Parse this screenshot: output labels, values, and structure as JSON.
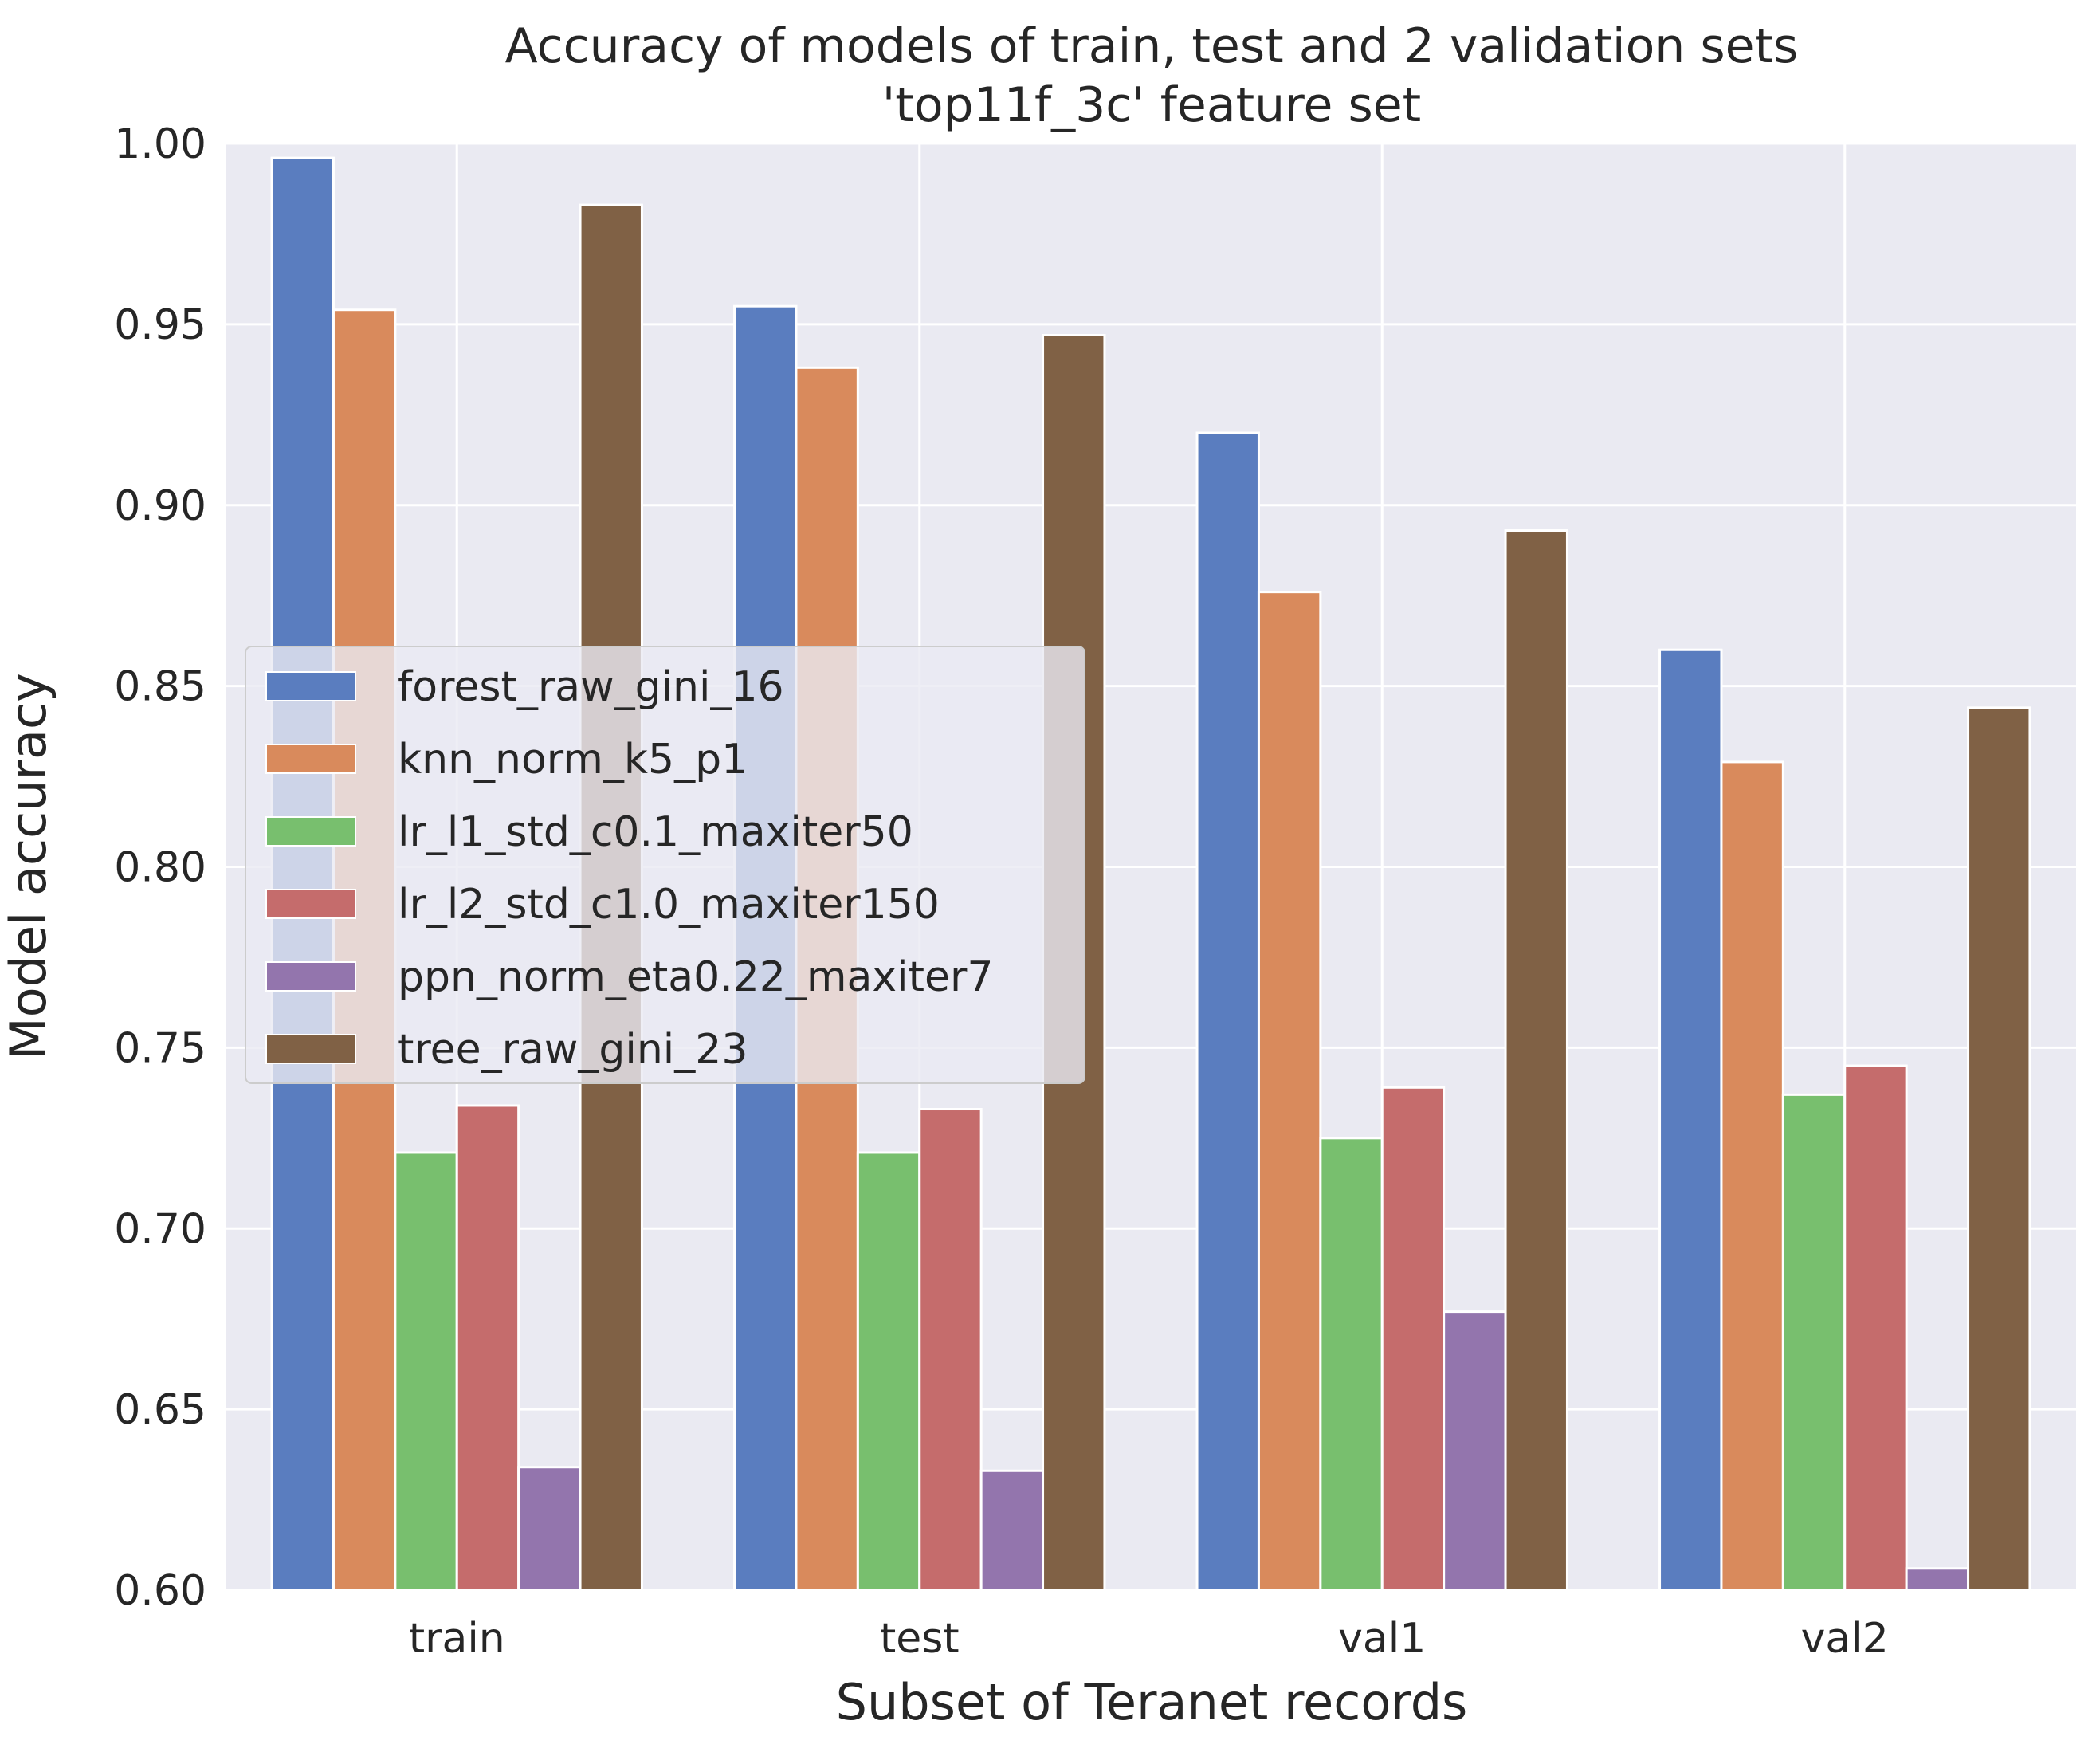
{
  "chart_data": {
    "type": "bar",
    "title": "Accuracy of models of train, test and 2 validation sets",
    "subtitle": "'top11f_3c' feature set",
    "xlabel": "Subset of Teranet records",
    "ylabel": "Model accuracy",
    "ylim": [
      0.6,
      1.0
    ],
    "yticks": [
      "0.60",
      "0.65",
      "0.70",
      "0.75",
      "0.80",
      "0.85",
      "0.90",
      "0.95",
      "1.00"
    ],
    "categories": [
      "train",
      "test",
      "val1",
      "val2"
    ],
    "grid": true,
    "legend_position": "center-left",
    "series": [
      {
        "name": "forest_raw_gini_16",
        "color": "#5a7dbf",
        "values": [
          0.996,
          0.955,
          0.92,
          0.86
        ]
      },
      {
        "name": "knn_norm_k5_p1",
        "color": "#d98a5c",
        "values": [
          0.954,
          0.938,
          0.876,
          0.829
        ]
      },
      {
        "name": "lr_l1_std_c0.1_maxiter50",
        "color": "#78bf6e",
        "values": [
          0.721,
          0.721,
          0.725,
          0.737
        ]
      },
      {
        "name": "lr_l2_std_c1.0_maxiter150",
        "color": "#c56c6c",
        "values": [
          0.734,
          0.733,
          0.739,
          0.745
        ]
      },
      {
        "name": "ppn_norm_eta0.22_maxiter7",
        "color": "#9375ad",
        "values": [
          0.634,
          0.633,
          0.677,
          0.606
        ]
      },
      {
        "name": "tree_raw_gini_23",
        "color": "#806145",
        "values": [
          0.983,
          0.947,
          0.893,
          0.844
        ]
      }
    ]
  }
}
